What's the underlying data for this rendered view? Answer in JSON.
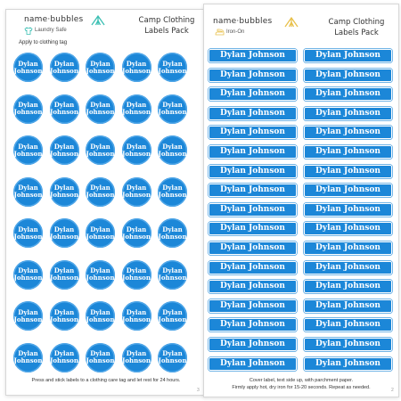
{
  "colors": {
    "label_blue": "#1c87d8",
    "tent_teal": "#3bbfb3",
    "tent_yellow": "#e8c04a"
  },
  "left_sheet": {
    "brand": "name·bubbles",
    "subtitle": "Laundry Safe",
    "subtitle_icon": "tshirt-icon",
    "pack_title_line1": "Camp Clothing",
    "pack_title_line2": "Labels Pack",
    "logo_icon": "tent-icon",
    "instruction_top": "Apply to clothing tag",
    "label_line1": "Dylan",
    "label_line2": "Johnson",
    "label_count": 40,
    "instruction_bottom": "Press and stick labels to a clothing care tag and let rest for 24 hours.",
    "page_number": "3"
  },
  "right_sheet": {
    "brand": "name·bubbles",
    "subtitle": "Iron-On",
    "subtitle_icon": "iron-icon",
    "pack_title_line1": "Camp Clothing",
    "pack_title_line2": "Labels Pack",
    "logo_icon": "tent-icon",
    "label_text": "Dylan Johnson",
    "label_count": 34,
    "instruction_line1": "Cover label, text side up, with parchment paper.",
    "instruction_line2": "Firmly apply hot, dry iron for 15-20 seconds. Repeat as needed.",
    "page_number": "2"
  }
}
